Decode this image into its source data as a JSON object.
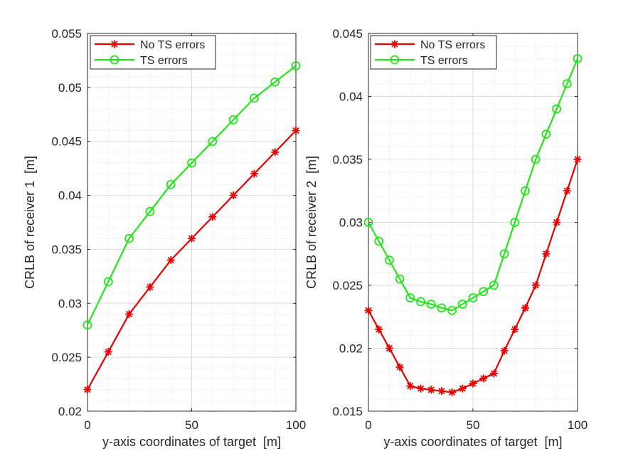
{
  "chart_data": [
    {
      "type": "line",
      "title": "",
      "xlabel": "y-axis coordinates of target  [m]",
      "ylabel": "CRLB of receiver 1  [m]",
      "xlim": [
        0,
        100
      ],
      "ylim": [
        0.02,
        0.055
      ],
      "xticks": [
        "0",
        "50",
        "100"
      ],
      "yticks": [
        "0.02",
        "0.025",
        "0.03",
        "0.035",
        "0.04",
        "0.045",
        "0.05",
        "0.055"
      ],
      "grid": true,
      "legend_position": "top-left",
      "x": [
        0,
        10,
        20,
        30,
        40,
        50,
        60,
        70,
        80,
        90,
        100
      ],
      "series": [
        {
          "name": "No TS errors",
          "color": "#e60000",
          "marker": "asterisk",
          "values": [
            0.022,
            0.0255,
            0.029,
            0.0315,
            0.034,
            0.036,
            0.038,
            0.04,
            0.042,
            0.044,
            0.046
          ]
        },
        {
          "name": "TS errors",
          "color": "#22e61a",
          "marker": "circle",
          "values": [
            0.028,
            0.032,
            0.036,
            0.0385,
            0.041,
            0.043,
            0.045,
            0.047,
            0.049,
            0.0505,
            0.052
          ]
        }
      ]
    },
    {
      "type": "line",
      "title": "",
      "xlabel": "y-axis coordinates of target  [m]",
      "ylabel": "CRLB of receiver 2  [m]",
      "xlim": [
        0,
        100
      ],
      "ylim": [
        0.015,
        0.045
      ],
      "xticks": [
        "0",
        "50",
        "100"
      ],
      "yticks": [
        "0.015",
        "0.02",
        "0.025",
        "0.03",
        "0.035",
        "0.04",
        "0.045"
      ],
      "grid": true,
      "legend_position": "top-left",
      "x": [
        0,
        5,
        10,
        15,
        20,
        25,
        30,
        35,
        40,
        45,
        50,
        55,
        60,
        65,
        70,
        75,
        80,
        85,
        90,
        95,
        100
      ],
      "series": [
        {
          "name": "No TS errors",
          "color": "#e60000",
          "marker": "asterisk",
          "values": [
            0.023,
            0.0215,
            0.02,
            0.0185,
            0.017,
            0.0168,
            0.0167,
            0.0166,
            0.0165,
            0.0168,
            0.0172,
            0.0176,
            0.018,
            0.0198,
            0.0215,
            0.0232,
            0.025,
            0.0275,
            0.03,
            0.0325,
            0.035
          ]
        },
        {
          "name": "TS errors",
          "color": "#22e61a",
          "marker": "circle",
          "values": [
            0.03,
            0.0285,
            0.027,
            0.0255,
            0.024,
            0.0237,
            0.0235,
            0.0232,
            0.023,
            0.0235,
            0.024,
            0.0245,
            0.025,
            0.0275,
            0.03,
            0.0325,
            0.035,
            0.037,
            0.039,
            0.041,
            0.043
          ]
        }
      ]
    }
  ]
}
